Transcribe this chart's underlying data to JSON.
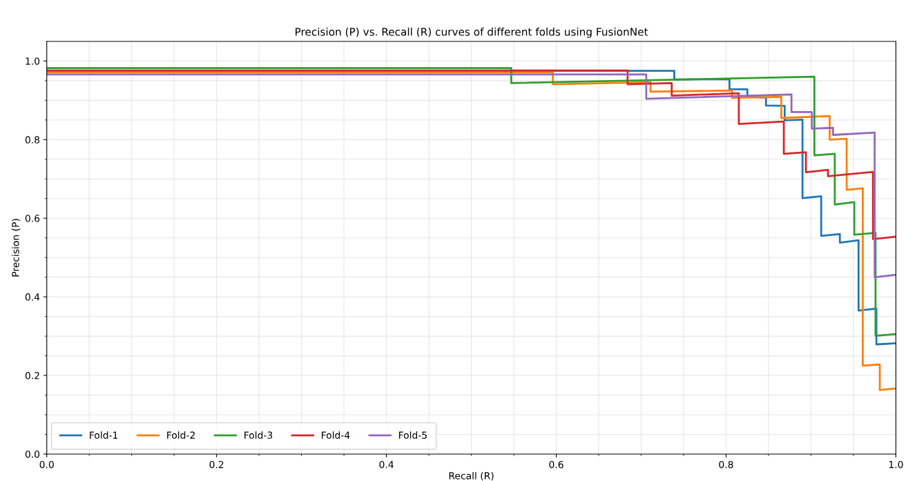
{
  "chart_data": {
    "type": "line",
    "title": "Precision (P) vs. Recall (R) curves of different folds using FusionNet",
    "xlabel": "Recall (R)",
    "ylabel": "Precision (P)",
    "xlim": [
      0,
      1.0
    ],
    "ylim": [
      0,
      1.05
    ],
    "xticks": [
      {
        "value": 0,
        "label": "0.0"
      },
      {
        "value": 0.05,
        "label": null
      },
      {
        "value": 0.1,
        "label": null
      },
      {
        "value": 0.15,
        "label": null
      },
      0.2,
      {
        "value": 0.25,
        "label": null
      },
      {
        "value": 0.3,
        "label": null
      },
      {
        "value": 0.35,
        "label": null
      },
      0.4,
      {
        "value": 0.45,
        "label": null
      },
      {
        "value": 0.5,
        "label": null
      },
      {
        "value": 0.55,
        "label": null
      },
      0.6,
      {
        "value": 0.65,
        "label": null
      },
      {
        "value": 0.7,
        "label": null
      },
      {
        "value": 0.75,
        "label": null
      },
      0.8,
      {
        "value": 0.85,
        "label": null
      },
      {
        "value": 0.9,
        "label": null
      },
      {
        "value": 0.95,
        "label": null
      },
      {
        "value": 1,
        "label": "1.0"
      }
    ],
    "yticks": [
      {
        "value": 0,
        "label": "0.0"
      },
      {
        "value": 0.05,
        "label": null
      },
      {
        "value": 0.1,
        "label": null
      },
      {
        "value": 0.15,
        "label": null
      },
      0.2,
      {
        "value": 0.25,
        "label": null
      },
      {
        "value": 0.3,
        "label": null
      },
      {
        "value": 0.35,
        "label": null
      },
      0.4,
      {
        "value": 0.45,
        "label": null
      },
      {
        "value": 0.5,
        "label": null
      },
      {
        "value": 0.55,
        "label": null
      },
      0.6,
      {
        "value": 0.65,
        "label": null
      },
      {
        "value": 0.7,
        "label": null
      },
      {
        "value": 0.75,
        "label": null
      },
      0.8,
      {
        "value": 0.85,
        "label": null
      },
      {
        "value": 0.9,
        "label": null
      },
      {
        "value": 0.95,
        "label": null
      },
      {
        "value": 1,
        "label": "1.0"
      }
    ],
    "grid": true,
    "legend": "bottom left",
    "marker": "none",
    "line_style": "solid",
    "series": [
      {
        "name": "Fold-1",
        "color": "#1f77b4",
        "x": [
          0,
          0.739,
          0.739,
          0.804,
          0.804,
          0.825,
          0.825,
          0.847,
          0.847,
          0.869,
          0.869,
          0.89,
          0.89,
          0.912,
          0.912,
          0.934,
          0.934,
          0.956,
          0.956,
          0.977,
          0.977,
          1.0
        ],
        "values": [
          0.975,
          0.975,
          0.953,
          0.954,
          0.928,
          0.928,
          0.909,
          0.907,
          0.887,
          0.886,
          0.849,
          0.851,
          0.651,
          0.656,
          0.555,
          0.56,
          0.538,
          0.544,
          0.365,
          0.37,
          0.279,
          0.282
        ]
      },
      {
        "name": "Fold-2",
        "color": "#ff7f0e",
        "x": [
          0,
          0.596,
          0.596,
          0.711,
          0.711,
          0.807,
          0.807,
          0.865,
          0.865,
          0.922,
          0.922,
          0.942,
          0.942,
          0.961,
          0.961,
          0.981,
          0.981,
          1.0
        ],
        "values": [
          0.971,
          0.971,
          0.941,
          0.946,
          0.922,
          0.925,
          0.906,
          0.909,
          0.855,
          0.86,
          0.8,
          0.802,
          0.672,
          0.676,
          0.225,
          0.228,
          0.163,
          0.167
        ]
      },
      {
        "name": "Fold-3",
        "color": "#2ca02c",
        "x": [
          0,
          0.547,
          0.547,
          0.904,
          0.904,
          0.928,
          0.928,
          0.951,
          0.951,
          0.976,
          0.976,
          1.0
        ],
        "values": [
          0.982,
          0.982,
          0.944,
          0.96,
          0.76,
          0.764,
          0.635,
          0.641,
          0.558,
          0.563,
          0.301,
          0.305
        ]
      },
      {
        "name": "Fold-4",
        "color": "#d62728",
        "x": [
          0,
          0.684,
          0.684,
          0.736,
          0.736,
          0.815,
          0.815,
          0.868,
          0.868,
          0.894,
          0.894,
          0.92,
          0.92,
          0.973,
          0.973,
          1.0
        ],
        "values": [
          0.976,
          0.976,
          0.941,
          0.944,
          0.912,
          0.918,
          0.84,
          0.846,
          0.764,
          0.768,
          0.717,
          0.723,
          0.707,
          0.718,
          0.547,
          0.553
        ]
      },
      {
        "name": "Fold-5",
        "color": "#9467bd",
        "x": [
          0,
          0.706,
          0.706,
          0.877,
          0.877,
          0.901,
          0.901,
          0.926,
          0.926,
          0.975,
          0.975,
          1.0
        ],
        "values": [
          0.966,
          0.966,
          0.904,
          0.915,
          0.87,
          0.87,
          0.828,
          0.83,
          0.812,
          0.818,
          0.45,
          0.456
        ]
      }
    ]
  }
}
